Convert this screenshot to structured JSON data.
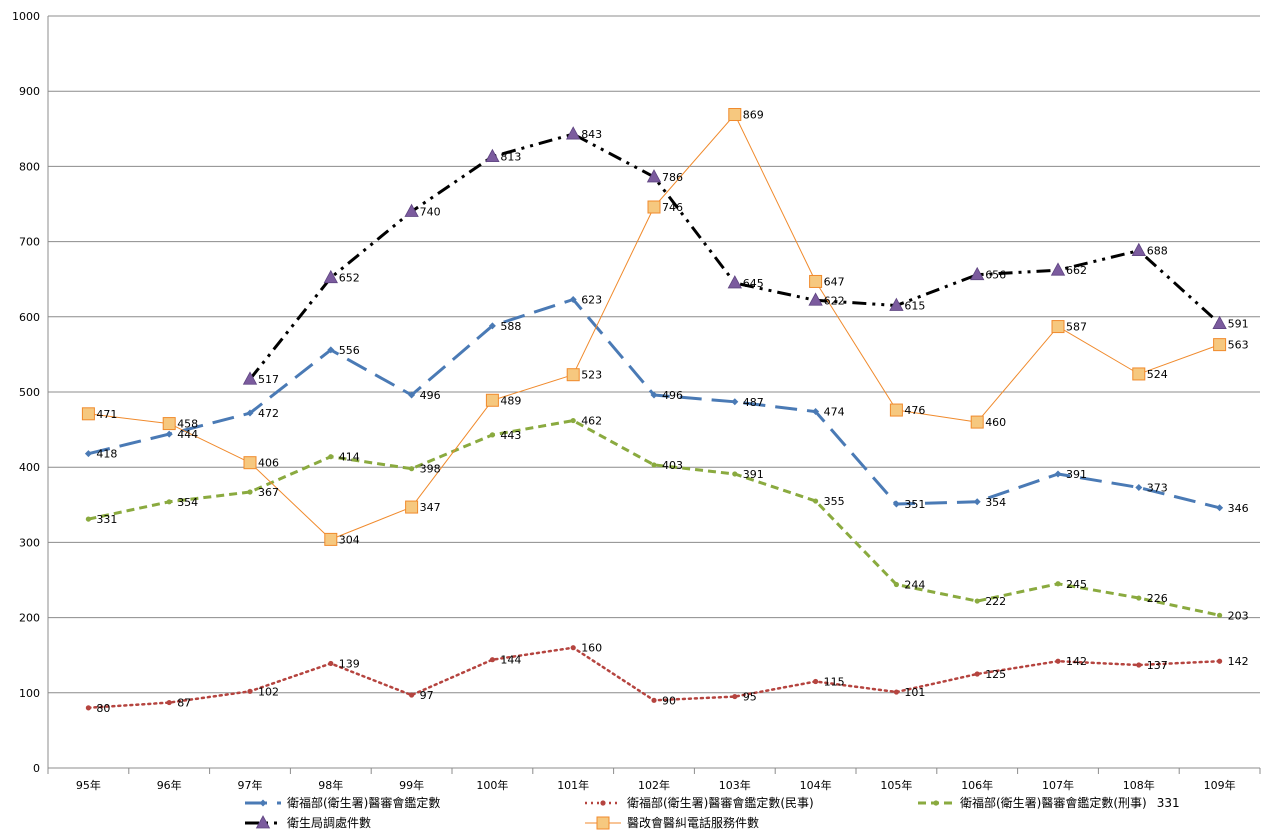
{
  "chart_data": {
    "type": "line",
    "categories": [
      "95年",
      "96年",
      "97年",
      "98年",
      "99年",
      "100年",
      "101年",
      "102年",
      "103年",
      "104年",
      "105年",
      "106年",
      "107年",
      "108年",
      "109年"
    ],
    "ylim": [
      0,
      1000
    ],
    "yticks": [
      0,
      100,
      200,
      300,
      400,
      500,
      600,
      700,
      800,
      900,
      1000
    ],
    "grid": true,
    "legend_position": "bottom",
    "series": [
      {
        "name": "衛福部(衛生署)醫審會鑑定數",
        "values": [
          418,
          444,
          472,
          556,
          496,
          588,
          623,
          496,
          487,
          474,
          351,
          354,
          391,
          373,
          346
        ],
        "color": "#4a7ab5",
        "marker": "diamond",
        "dash": "long-dash"
      },
      {
        "name": "衛福部(衛生署)醫審會鑑定數(民事)",
        "values": [
          80,
          87,
          102,
          139,
          97,
          144,
          160,
          90,
          95,
          115,
          101,
          125,
          142,
          137,
          142
        ],
        "color": "#b5443f",
        "marker": "circle",
        "dash": "dot"
      },
      {
        "name": "衛福部(衛生署)醫審會鑑定數(刑事)",
        "values": [
          331,
          354,
          367,
          414,
          398,
          443,
          462,
          403,
          391,
          355,
          244,
          222,
          245,
          226,
          203
        ],
        "color": "#8aaa3f",
        "marker": "circle",
        "dash": "dash",
        "legend_suffix": "331"
      },
      {
        "name": "衛生局調處件數",
        "values": [
          null,
          null,
          517,
          652,
          740,
          813,
          843,
          786,
          645,
          622,
          615,
          656,
          662,
          688,
          591
        ],
        "color": "#000000",
        "marker": "triangle",
        "marker_color": "#7b5b9e",
        "dash": "dash-dot-dot"
      },
      {
        "name": "醫改會醫糾電話服務件數",
        "values": [
          471,
          458,
          406,
          304,
          347,
          489,
          523,
          746,
          869,
          647,
          476,
          460,
          587,
          524,
          563
        ],
        "color": "#f08a2c",
        "marker": "square",
        "marker_color": "#f6c87f",
        "dash": "solid"
      }
    ]
  }
}
